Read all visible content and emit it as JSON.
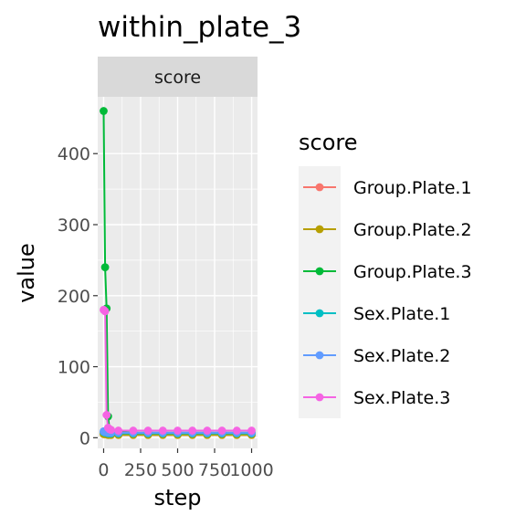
{
  "chart_data": {
    "type": "line",
    "title": "within_plate_3",
    "facet_label": "score",
    "xlabel": "step",
    "ylabel": "value",
    "xlim": [
      -40,
      1040
    ],
    "ylim": [
      -15,
      480
    ],
    "x_ticks": [
      0,
      250,
      500,
      750,
      1000
    ],
    "x_tick_labels": [
      "0",
      "250",
      "500",
      "750",
      "1000"
    ],
    "y_ticks": [
      0,
      100,
      200,
      300,
      400
    ],
    "y_tick_labels": [
      "0",
      "100",
      "200",
      "300",
      "400"
    ],
    "grid": true,
    "legend": {
      "title": "score",
      "position": "right"
    },
    "series": [
      {
        "name": "Group.Plate.1",
        "color": "#F8766D",
        "x": [
          0,
          10,
          20,
          30,
          40,
          50,
          100,
          200,
          300,
          400,
          500,
          600,
          700,
          800,
          900,
          1000
        ],
        "y": [
          6,
          5,
          5,
          4,
          4,
          4,
          4,
          4,
          4,
          4,
          4,
          4,
          4,
          4,
          4,
          4
        ]
      },
      {
        "name": "Group.Plate.2",
        "color": "#B79F00",
        "x": [
          0,
          10,
          20,
          30,
          40,
          50,
          100,
          200,
          300,
          400,
          500,
          600,
          700,
          800,
          900,
          1000
        ],
        "y": [
          5,
          5,
          5,
          4,
          4,
          4,
          4,
          4,
          4,
          4,
          4,
          4,
          4,
          4,
          4,
          4
        ]
      },
      {
        "name": "Group.Plate.3",
        "color": "#00BA38",
        "x": [
          0,
          10,
          20,
          30,
          40,
          50,
          100,
          200,
          300,
          400,
          500,
          600,
          700,
          800,
          900,
          1000
        ],
        "y": [
          460,
          240,
          182,
          30,
          12,
          10,
          8,
          7,
          7,
          7,
          7,
          7,
          7,
          7,
          7,
          7
        ]
      },
      {
        "name": "Sex.Plate.1",
        "color": "#00BFC4",
        "x": [
          0,
          10,
          20,
          30,
          40,
          50,
          100,
          200,
          300,
          400,
          500,
          600,
          700,
          800,
          900,
          1000
        ],
        "y": [
          8,
          7,
          7,
          6,
          6,
          6,
          6,
          6,
          6,
          6,
          6,
          6,
          6,
          6,
          6,
          6
        ]
      },
      {
        "name": "Sex.Plate.2",
        "color": "#619CFF",
        "x": [
          0,
          10,
          20,
          30,
          40,
          50,
          100,
          200,
          300,
          400,
          500,
          600,
          700,
          800,
          900,
          1000
        ],
        "y": [
          9,
          8,
          8,
          7,
          7,
          7,
          7,
          7,
          7,
          7,
          7,
          7,
          7,
          7,
          7,
          7
        ]
      },
      {
        "name": "Sex.Plate.3",
        "color": "#F564E3",
        "x": [
          0,
          10,
          20,
          30,
          40,
          50,
          100,
          200,
          300,
          400,
          500,
          600,
          700,
          800,
          900,
          1000
        ],
        "y": [
          180,
          178,
          32,
          14,
          12,
          11,
          10,
          10,
          10,
          10,
          10,
          10,
          10,
          10,
          10,
          10
        ]
      }
    ]
  }
}
